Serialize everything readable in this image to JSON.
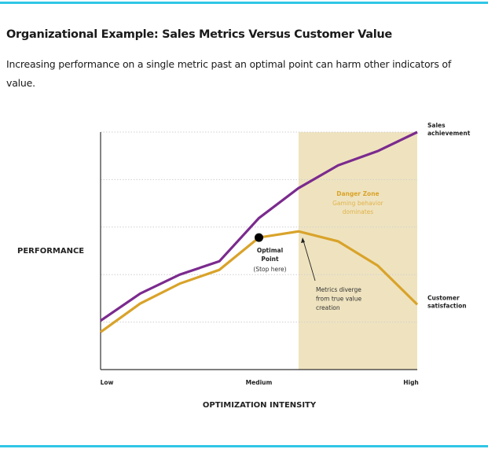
{
  "header": {
    "title": "Organizational Example: Sales Metrics Versus Customer Value",
    "subtitle": "Increasing performance on a single metric past an optimal point can harm other indicators of value."
  },
  "chart_data": {
    "type": "line",
    "title": "",
    "xlabel": "OPTIMIZATION INTENSITY",
    "ylabel": "PERFORMANCE",
    "x": [
      0,
      1,
      2,
      3,
      4,
      5,
      6,
      7,
      8
    ],
    "xlim": [
      0,
      8
    ],
    "ylim": [
      0,
      5
    ],
    "x_tick_labels": [
      {
        "x": 0,
        "label": "Low"
      },
      {
        "x": 4,
        "label": "Medium"
      },
      {
        "x": 8,
        "label": "High"
      }
    ],
    "grid": "horizontal dotted",
    "series": [
      {
        "name": "Sales achievement",
        "label_lines": [
          "Sales",
          "achievement"
        ],
        "color": "#7b2a8e",
        "values": [
          1.03,
          1.6,
          2.0,
          2.28,
          3.19,
          3.82,
          4.3,
          4.6,
          5.0
        ]
      },
      {
        "name": "Customer satisfaction",
        "label_lines": [
          "Customer",
          "satisfaction"
        ],
        "color": "#d9a32a",
        "values": [
          0.79,
          1.39,
          1.81,
          2.1,
          2.78,
          2.91,
          2.7,
          2.19,
          1.37
        ]
      }
    ],
    "danger_zone": {
      "x_range": [
        5,
        8
      ],
      "color": "#efe3bf",
      "title": "Danger Zone",
      "lines": [
        "Gaming behavior",
        "dominates"
      ]
    },
    "optimal_point": {
      "x": 4,
      "y": 2.78,
      "lines": [
        "Optimal",
        "Point"
      ],
      "note": "(Stop here)"
    },
    "annotation": {
      "x": 5,
      "y": 2.91,
      "lines": [
        "Metrics diverge",
        "from true value",
        "creation"
      ]
    }
  }
}
